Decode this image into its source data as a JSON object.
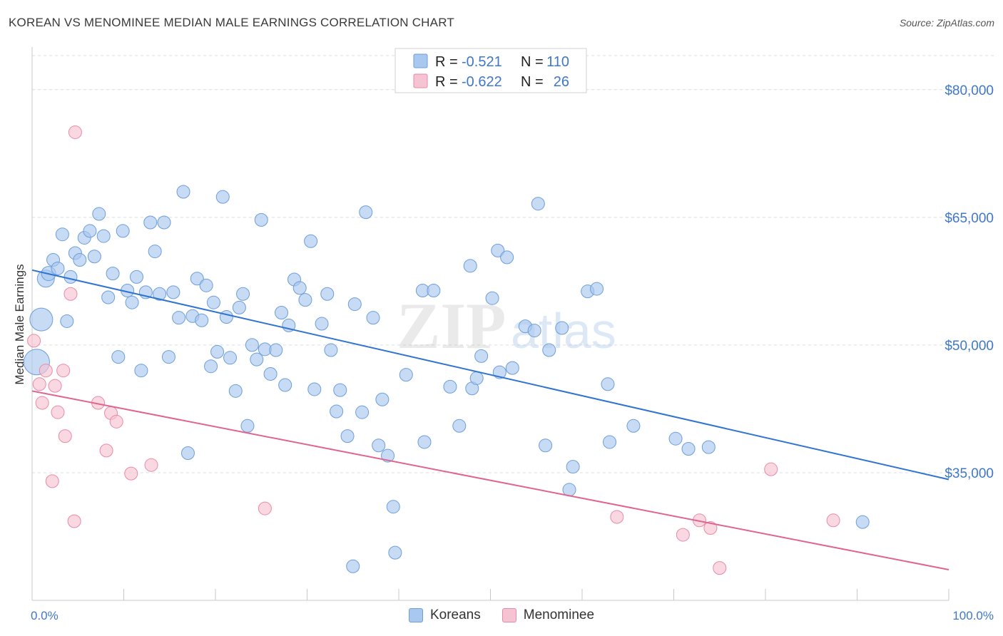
{
  "header": {
    "title": "KOREAN VS MENOMINEE MEDIAN MALE EARNINGS CORRELATION CHART",
    "source": "Source: ZipAtlas.com"
  },
  "watermark": {
    "zip": "ZIP",
    "atlas": "atlas"
  },
  "legend": {
    "r_label": "R =",
    "n_label": "N =",
    "rows": [
      {
        "r": "-0.521",
        "n": "110",
        "color": "#a9c8ef",
        "stroke": "#6d9ed8"
      },
      {
        "r": "-0.622",
        "n": "26",
        "color": "#f6c3d2",
        "stroke": "#e88aa7"
      }
    ]
  },
  "bottom_legend": {
    "koreans": "Koreans",
    "menominee": "Menominee"
  },
  "chart_data": {
    "type": "scatter",
    "title": "KOREAN VS MENOMINEE MEDIAN MALE EARNINGS CORRELATION CHART",
    "xlabel": "",
    "ylabel": "Median Male Earnings",
    "xlim": [
      0,
      100
    ],
    "ylim": [
      20000,
      84000
    ],
    "x_tick_labels": [
      "0.0%",
      "100.0%"
    ],
    "y_ticks": [
      35000,
      50000,
      65000,
      80000
    ],
    "y_tick_labels": [
      "$35,000",
      "$50,000",
      "$65,000",
      "$80,000"
    ],
    "series": [
      {
        "name": "Koreans",
        "color": "#6d9ed8",
        "fill": "#a9c8ef",
        "r": -0.521,
        "n": 110,
        "trend": {
          "x": [
            0,
            100
          ],
          "y": [
            58800,
            34200
          ]
        },
        "points": [
          [
            1,
            53000,
            16
          ],
          [
            0.5,
            48000,
            18
          ],
          [
            1.5,
            57800,
            12
          ],
          [
            1.8,
            58400,
            10
          ],
          [
            2.3,
            60000,
            9
          ],
          [
            2.8,
            59000,
            9
          ],
          [
            3.3,
            63000,
            9
          ],
          [
            3.8,
            52800,
            9
          ],
          [
            4.2,
            58000,
            9
          ],
          [
            4.7,
            60800,
            9
          ],
          [
            5.2,
            60000,
            9
          ],
          [
            5.7,
            62600,
            9
          ],
          [
            6.3,
            63400,
            9
          ],
          [
            6.8,
            60400,
            9
          ],
          [
            7.3,
            65400,
            9
          ],
          [
            7.8,
            62800,
            9
          ],
          [
            8.3,
            55600,
            9
          ],
          [
            8.8,
            58400,
            9
          ],
          [
            9.4,
            48600,
            9
          ],
          [
            9.9,
            63400,
            9
          ],
          [
            10.4,
            56400,
            9
          ],
          [
            10.9,
            55000,
            9
          ],
          [
            11.4,
            58000,
            9
          ],
          [
            11.9,
            47000,
            9
          ],
          [
            12.4,
            56200,
            9
          ],
          [
            12.9,
            64400,
            9
          ],
          [
            13.4,
            61000,
            9
          ],
          [
            13.9,
            56000,
            9
          ],
          [
            14.4,
            64400,
            9
          ],
          [
            14.9,
            48600,
            9
          ],
          [
            15.4,
            56200,
            9
          ],
          [
            16.0,
            53200,
            9
          ],
          [
            16.5,
            68000,
            9
          ],
          [
            17.0,
            37300,
            9
          ],
          [
            17.5,
            53400,
            9
          ],
          [
            18.0,
            57800,
            9
          ],
          [
            18.5,
            52900,
            9
          ],
          [
            19.0,
            57000,
            9
          ],
          [
            19.5,
            47500,
            9
          ],
          [
            19.8,
            55000,
            9
          ],
          [
            20.2,
            49200,
            9
          ],
          [
            20.8,
            67400,
            9
          ],
          [
            21.2,
            53300,
            9
          ],
          [
            21.6,
            48500,
            9
          ],
          [
            22.2,
            44600,
            9
          ],
          [
            22.6,
            54400,
            9
          ],
          [
            23.0,
            56000,
            9
          ],
          [
            23.5,
            40500,
            9
          ],
          [
            24.0,
            50000,
            9
          ],
          [
            24.5,
            48300,
            9
          ],
          [
            25.0,
            64700,
            9
          ],
          [
            25.4,
            49500,
            9
          ],
          [
            26.0,
            46600,
            9
          ],
          [
            26.6,
            49400,
            9
          ],
          [
            27.2,
            53800,
            9
          ],
          [
            27.6,
            45300,
            9
          ],
          [
            28.0,
            52300,
            9
          ],
          [
            28.6,
            57700,
            9
          ],
          [
            29.2,
            56700,
            9
          ],
          [
            29.8,
            55300,
            9
          ],
          [
            30.4,
            62200,
            9
          ],
          [
            30.8,
            44800,
            9
          ],
          [
            31.6,
            52500,
            9
          ],
          [
            32.2,
            56000,
            9
          ],
          [
            32.6,
            49400,
            9
          ],
          [
            33.2,
            42200,
            9
          ],
          [
            33.6,
            44700,
            9
          ],
          [
            34.4,
            39300,
            9
          ],
          [
            35.2,
            54800,
            9
          ],
          [
            36.0,
            42100,
            9
          ],
          [
            36.4,
            65600,
            9
          ],
          [
            37.2,
            53200,
            9
          ],
          [
            37.8,
            38200,
            9
          ],
          [
            38.2,
            43600,
            9
          ],
          [
            38.8,
            37000,
            9
          ],
          [
            39.4,
            31000,
            9
          ],
          [
            39.6,
            25600,
            9
          ],
          [
            40.8,
            46500,
            9
          ],
          [
            42.6,
            56400,
            9
          ],
          [
            42.8,
            38600,
            9
          ],
          [
            43.8,
            56400,
            9
          ],
          [
            45.6,
            45100,
            9
          ],
          [
            46.6,
            40500,
            9
          ],
          [
            47.8,
            59300,
            9
          ],
          [
            48.0,
            44900,
            9
          ],
          [
            48.5,
            46100,
            9
          ],
          [
            49.0,
            48700,
            9
          ],
          [
            50.2,
            55500,
            9
          ],
          [
            50.8,
            61100,
            9
          ],
          [
            51.0,
            46800,
            9
          ],
          [
            51.8,
            60300,
            9
          ],
          [
            52.4,
            47300,
            9
          ],
          [
            53.8,
            52200,
            9
          ],
          [
            54.8,
            51700,
            9
          ],
          [
            55.2,
            66600,
            9
          ],
          [
            56.0,
            38200,
            9
          ],
          [
            56.4,
            49400,
            9
          ],
          [
            57.8,
            52000,
            9
          ],
          [
            58.6,
            33000,
            9
          ],
          [
            59.0,
            35700,
            9
          ],
          [
            60.6,
            56300,
            9
          ],
          [
            61.6,
            56600,
            9
          ],
          [
            62.8,
            45400,
            9
          ],
          [
            63.0,
            38600,
            9
          ],
          [
            65.6,
            40500,
            9
          ],
          [
            70.2,
            39000,
            9
          ],
          [
            71.6,
            37800,
            9
          ],
          [
            73.8,
            38000,
            9
          ],
          [
            90.6,
            29200,
            9
          ],
          [
            35.0,
            24000,
            9
          ]
        ]
      },
      {
        "name": "Menominee",
        "color": "#e88aa7",
        "fill": "#f6c3d2",
        "r": -0.622,
        "n": 26,
        "trend": {
          "x": [
            0,
            100
          ],
          "y": [
            44600,
            23600
          ]
        },
        "points": [
          [
            0.2,
            50500
          ],
          [
            0.8,
            45400
          ],
          [
            1.1,
            43200
          ],
          [
            1.5,
            47000
          ],
          [
            2.2,
            34000
          ],
          [
            2.5,
            45200
          ],
          [
            2.8,
            42100
          ],
          [
            3.4,
            47000
          ],
          [
            3.6,
            39300
          ],
          [
            4.2,
            56000
          ],
          [
            4.6,
            29300
          ],
          [
            4.7,
            75000
          ],
          [
            7.2,
            43200
          ],
          [
            8.1,
            37600
          ],
          [
            8.6,
            42000
          ],
          [
            9.2,
            41000
          ],
          [
            10.8,
            34900
          ],
          [
            13.0,
            35900
          ],
          [
            25.4,
            30800
          ],
          [
            63.8,
            29800
          ],
          [
            71.0,
            27700
          ],
          [
            72.8,
            29400
          ],
          [
            74.0,
            28500
          ],
          [
            75.0,
            23800
          ],
          [
            80.6,
            35400
          ],
          [
            87.4,
            29400
          ]
        ]
      }
    ]
  }
}
